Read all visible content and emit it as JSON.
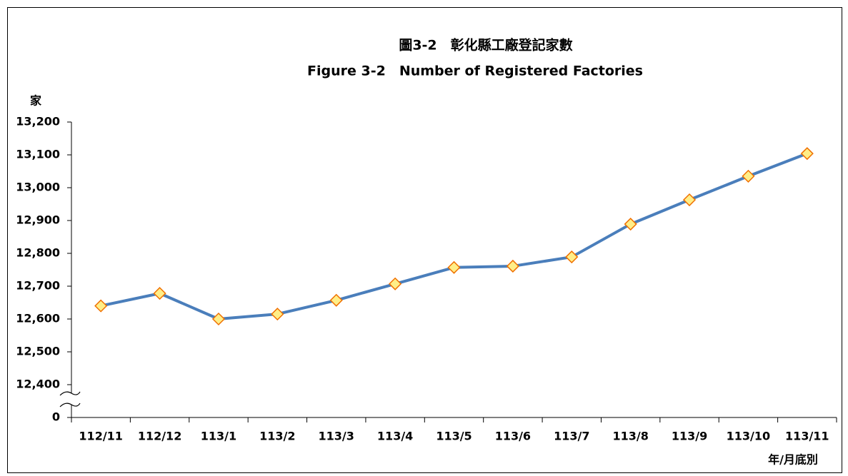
{
  "chart_data": {
    "type": "line",
    "title": "圖3-2　彰化縣工廠登記家數",
    "subtitle": "Figure 3-2　Number of Registered Factories",
    "y_label": "家",
    "x_label": "年/月底別",
    "categories": [
      "112/11",
      "112/12",
      "113/1",
      "113/2",
      "113/3",
      "113/4",
      "113/5",
      "113/6",
      "113/7",
      "113/8",
      "113/9",
      "113/10",
      "113/11"
    ],
    "series": [
      {
        "name": "工廠登記家數",
        "color": "#4a7ebb",
        "marker_fill": "#ffee88",
        "marker_stroke": "#f07000",
        "values": [
          12640,
          12678,
          12600,
          12615,
          12657,
          12707,
          12757,
          12761,
          12789,
          12889,
          12963,
          13035,
          13104
        ]
      }
    ],
    "ylim": [
      12400,
      13200
    ],
    "yticks": [
      0,
      {
        "value": 12400,
        "label": "12,400"
      },
      {
        "value": 12500,
        "label": "12,500"
      },
      {
        "value": 12600,
        "label": "12,600"
      },
      {
        "value": 12700,
        "label": "12,700"
      },
      {
        "value": 12800,
        "label": "12,800"
      },
      {
        "value": 12900,
        "label": "12,900"
      },
      {
        "value": 13000,
        "label": "13,000"
      },
      {
        "value": 13100,
        "label": "13,100"
      },
      {
        "value": 13200,
        "label": "13,200"
      }
    ],
    "axis_break": true
  }
}
